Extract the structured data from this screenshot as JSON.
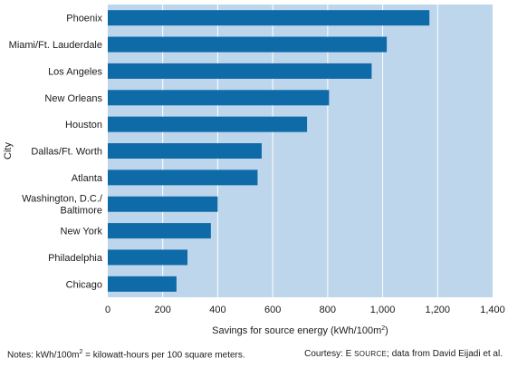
{
  "chart_data": {
    "type": "bar",
    "orientation": "horizontal",
    "categories": [
      "Phoenix",
      "Miami/Ft. Lauderdale",
      "Los Angeles",
      "New Orleans",
      "Houston",
      "Dallas/Ft. Worth",
      "Atlanta",
      "Washington, D.C./\nBaltimore",
      "New York",
      "Philadelphia",
      "Chicago"
    ],
    "values": [
      1170,
      1015,
      960,
      805,
      725,
      560,
      545,
      400,
      375,
      290,
      250
    ],
    "xlabel": "Savings for source energy (kWh/100m²)",
    "ylabel": "City",
    "xlim": [
      0,
      1400
    ],
    "xticks": [
      "0",
      "200",
      "400",
      "600",
      "800",
      "1,000",
      "1,200",
      "1,400"
    ],
    "grid": "vertical",
    "colors": {
      "bar": "#0f6aa8",
      "plot_bg": "#bdd6ec",
      "grid": "#ffffff"
    }
  },
  "footer": {
    "notes_prefix": "Notes: kWh/100m",
    "notes_sup": "2",
    "notes_suffix": " = kilowatt-hours per 100 square meters.",
    "courtesy_prefix": "Courtesy: E ",
    "courtesy_source": "SOURCE",
    "courtesy_suffix": "; data from David Eijadi et al."
  }
}
